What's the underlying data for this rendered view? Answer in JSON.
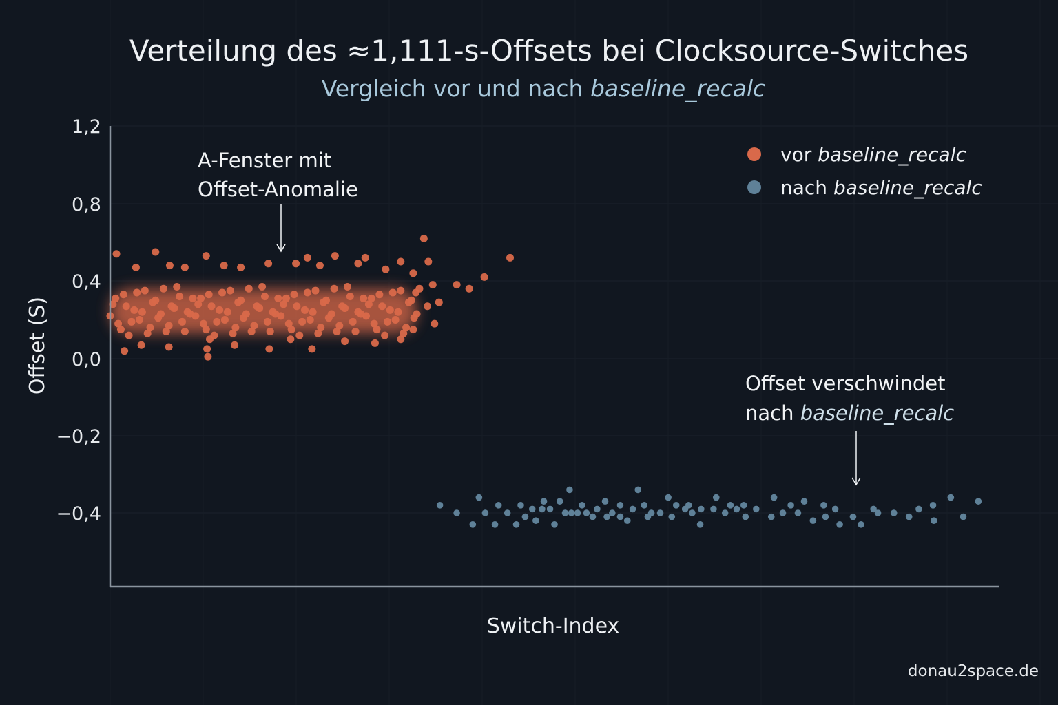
{
  "chart_data": {
    "type": "scatter",
    "title": "Verteilung des ≈1,111-s-Offsets bei Clocksource-Switches",
    "subtitle_prefix": "Vergleich vor und nach ",
    "subtitle_emph": "baseline_recalc",
    "xlabel": "Switch-Index",
    "ylabel": "Offset (S)",
    "yticks": [
      "1,2",
      "0,8",
      "0,4",
      "0,0",
      "−0,2",
      "−0,4"
    ],
    "ytick_values": [
      1.2,
      0.8,
      0.4,
      0.0,
      -0.2,
      -0.4
    ],
    "xlim": [
      0,
      1000
    ],
    "grid": true,
    "legend_position": "top-right",
    "colors": {
      "background": "#111720",
      "before": "#d9694a",
      "after": "#5f8198",
      "axis": "#8a949e"
    },
    "series": [
      {
        "name": "vor baseline_recalc",
        "legend_prefix": "vor ",
        "legend_emph": "baseline_recalc",
        "color": "#d9694a",
        "points": [
          [
            7,
            0.54
          ],
          [
            51,
            0.55
          ],
          [
            108,
            0.53
          ],
          [
            178,
            0.49
          ],
          [
            222,
            0.52
          ],
          [
            253,
            0.53
          ],
          [
            287,
            0.52
          ],
          [
            327,
            0.5
          ],
          [
            353,
            0.62
          ],
          [
            358,
            0.5
          ],
          [
            450,
            0.52
          ],
          [
            421,
            0.42
          ],
          [
            390,
            0.38
          ],
          [
            404,
            0.36
          ],
          [
            363,
            0.38
          ],
          [
            370,
            0.29
          ],
          [
            365,
            0.18
          ],
          [
            327,
            0.1
          ],
          [
            298,
            0.08
          ],
          [
            227,
            0.05
          ],
          [
            179,
            0.05
          ],
          [
            110,
            0.01
          ],
          [
            109,
            0.05
          ],
          [
            16,
            0.04
          ],
          [
            66,
            0.06
          ],
          [
            112,
            0.1
          ],
          [
            84,
            0.47
          ],
          [
            29,
            0.47
          ],
          [
            67,
            0.48
          ],
          [
            128,
            0.48
          ],
          [
            147,
            0.47
          ],
          [
            209,
            0.49
          ],
          [
            236,
            0.48
          ],
          [
            279,
            0.49
          ],
          [
            310,
            0.46
          ],
          [
            341,
            0.44
          ],
          [
            344,
            0.34
          ],
          [
            357,
            0.27
          ],
          [
            341,
            0.15
          ],
          [
            35,
            0.07
          ],
          [
            203,
            0.1
          ],
          [
            264,
            0.09
          ],
          [
            140,
            0.07
          ],
          [
            0,
            0.22
          ],
          [
            6,
            0.31
          ],
          [
            12,
            0.15
          ],
          [
            18,
            0.27
          ],
          [
            24,
            0.19
          ],
          [
            30,
            0.34
          ],
          [
            36,
            0.24
          ],
          [
            42,
            0.13
          ],
          [
            48,
            0.29
          ],
          [
            54,
            0.21
          ],
          [
            60,
            0.36
          ],
          [
            66,
            0.17
          ],
          [
            72,
            0.26
          ],
          [
            78,
            0.32
          ],
          [
            84,
            0.14
          ],
          [
            90,
            0.23
          ],
          [
            96,
            0.22
          ],
          [
            102,
            0.31
          ],
          [
            108,
            0.15
          ],
          [
            114,
            0.27
          ],
          [
            120,
            0.19
          ],
          [
            126,
            0.34
          ],
          [
            132,
            0.24
          ],
          [
            138,
            0.13
          ],
          [
            144,
            0.29
          ],
          [
            150,
            0.21
          ],
          [
            156,
            0.36
          ],
          [
            162,
            0.17
          ],
          [
            168,
            0.26
          ],
          [
            174,
            0.32
          ],
          [
            180,
            0.14
          ],
          [
            186,
            0.23
          ],
          [
            192,
            0.22
          ],
          [
            198,
            0.31
          ],
          [
            204,
            0.15
          ],
          [
            210,
            0.27
          ],
          [
            216,
            0.19
          ],
          [
            222,
            0.34
          ],
          [
            228,
            0.24
          ],
          [
            234,
            0.13
          ],
          [
            240,
            0.29
          ],
          [
            246,
            0.21
          ],
          [
            252,
            0.36
          ],
          [
            258,
            0.17
          ],
          [
            264,
            0.26
          ],
          [
            270,
            0.32
          ],
          [
            276,
            0.14
          ],
          [
            282,
            0.23
          ],
          [
            288,
            0.22
          ],
          [
            294,
            0.31
          ],
          [
            300,
            0.15
          ],
          [
            306,
            0.27
          ],
          [
            312,
            0.19
          ],
          [
            318,
            0.34
          ],
          [
            324,
            0.24
          ],
          [
            330,
            0.13
          ],
          [
            336,
            0.29
          ],
          [
            342,
            0.21
          ],
          [
            348,
            0.36
          ],
          [
            3,
            0.28
          ],
          [
            9,
            0.18
          ],
          [
            15,
            0.33
          ],
          [
            21,
            0.12
          ],
          [
            27,
            0.25
          ],
          [
            33,
            0.2
          ],
          [
            39,
            0.35
          ],
          [
            45,
            0.16
          ],
          [
            51,
            0.3
          ],
          [
            57,
            0.23
          ],
          [
            63,
            0.14
          ],
          [
            69,
            0.27
          ],
          [
            75,
            0.37
          ],
          [
            81,
            0.19
          ],
          [
            87,
            0.24
          ],
          [
            93,
            0.31
          ],
          [
            99,
            0.28
          ],
          [
            105,
            0.18
          ],
          [
            111,
            0.33
          ],
          [
            117,
            0.12
          ],
          [
            123,
            0.25
          ],
          [
            129,
            0.2
          ],
          [
            135,
            0.35
          ],
          [
            141,
            0.16
          ],
          [
            147,
            0.3
          ],
          [
            153,
            0.23
          ],
          [
            159,
            0.14
          ],
          [
            165,
            0.27
          ],
          [
            171,
            0.37
          ],
          [
            177,
            0.19
          ],
          [
            183,
            0.24
          ],
          [
            189,
            0.31
          ],
          [
            195,
            0.28
          ],
          [
            201,
            0.18
          ],
          [
            207,
            0.33
          ],
          [
            213,
            0.12
          ],
          [
            219,
            0.25
          ],
          [
            225,
            0.2
          ],
          [
            231,
            0.35
          ],
          [
            237,
            0.16
          ],
          [
            243,
            0.3
          ],
          [
            249,
            0.23
          ],
          [
            255,
            0.14
          ],
          [
            261,
            0.27
          ],
          [
            267,
            0.37
          ],
          [
            273,
            0.19
          ],
          [
            279,
            0.24
          ],
          [
            285,
            0.31
          ],
          [
            291,
            0.28
          ],
          [
            297,
            0.18
          ],
          [
            303,
            0.33
          ],
          [
            309,
            0.12
          ],
          [
            315,
            0.25
          ],
          [
            321,
            0.2
          ],
          [
            327,
            0.35
          ],
          [
            333,
            0.16
          ],
          [
            339,
            0.3
          ],
          [
            345,
            0.23
          ]
        ]
      },
      {
        "name": "nach baseline_recalc",
        "legend_prefix": "nach ",
        "legend_emph": "baseline_recalc",
        "color": "#5f8198",
        "points": [
          [
            371,
            -0.38
          ],
          [
            390,
            -0.4
          ],
          [
            408,
            -0.43
          ],
          [
            415,
            -0.36
          ],
          [
            422,
            -0.4
          ],
          [
            433,
            -0.43
          ],
          [
            437,
            -0.38
          ],
          [
            447,
            -0.4
          ],
          [
            457,
            -0.43
          ],
          [
            462,
            -0.38
          ],
          [
            467,
            -0.41
          ],
          [
            475,
            -0.39
          ],
          [
            479,
            -0.42
          ],
          [
            486,
            -0.39
          ],
          [
            488,
            -0.37
          ],
          [
            495,
            -0.39
          ],
          [
            500,
            -0.43
          ],
          [
            506,
            -0.37
          ],
          [
            512,
            -0.4
          ],
          [
            517,
            -0.34
          ],
          [
            519,
            -0.4
          ],
          [
            526,
            -0.4
          ],
          [
            531,
            -0.38
          ],
          [
            536,
            -0.4
          ],
          [
            543,
            -0.41
          ],
          [
            548,
            -0.39
          ],
          [
            557,
            -0.37
          ],
          [
            559,
            -0.41
          ],
          [
            565,
            -0.4
          ],
          [
            574,
            -0.38
          ],
          [
            574,
            -0.41
          ],
          [
            582,
            -0.42
          ],
          [
            588,
            -0.39
          ],
          [
            594,
            -0.34
          ],
          [
            601,
            -0.38
          ],
          [
            605,
            -0.41
          ],
          [
            609,
            -0.4
          ],
          [
            619,
            -0.4
          ],
          [
            628,
            -0.36
          ],
          [
            632,
            -0.41
          ],
          [
            637,
            -0.38
          ],
          [
            647,
            -0.39
          ],
          [
            651,
            -0.38
          ],
          [
            655,
            -0.4
          ],
          [
            664,
            -0.43
          ],
          [
            665,
            -0.39
          ],
          [
            679,
            -0.39
          ],
          [
            682,
            -0.36
          ],
          [
            692,
            -0.4
          ],
          [
            698,
            -0.38
          ],
          [
            705,
            -0.39
          ],
          [
            713,
            -0.38
          ],
          [
            715,
            -0.41
          ],
          [
            727,
            -0.39
          ],
          [
            744,
            -0.41
          ],
          [
            747,
            -0.36
          ],
          [
            757,
            -0.4
          ],
          [
            766,
            -0.38
          ],
          [
            774,
            -0.4
          ],
          [
            781,
            -0.37
          ],
          [
            791,
            -0.42
          ],
          [
            803,
            -0.38
          ],
          [
            805,
            -0.41
          ],
          [
            816,
            -0.39
          ],
          [
            821,
            -0.43
          ],
          [
            836,
            -0.41
          ],
          [
            845,
            -0.43
          ],
          [
            859,
            -0.39
          ],
          [
            864,
            -0.4
          ],
          [
            882,
            -0.4
          ],
          [
            899,
            -0.41
          ],
          [
            910,
            -0.39
          ],
          [
            926,
            -0.38
          ],
          [
            927,
            -0.42
          ],
          [
            946,
            -0.36
          ],
          [
            960,
            -0.41
          ],
          [
            977,
            -0.37
          ]
        ]
      }
    ],
    "annotations": [
      {
        "lines": [
          "A-Fenster mit",
          "Offset-Anomalie"
        ]
      },
      {
        "line1": "Offset verschwindet",
        "line2_prefix": "nach ",
        "line2_emph": "baseline_recalc"
      }
    ],
    "watermark": "donau2space.de"
  }
}
